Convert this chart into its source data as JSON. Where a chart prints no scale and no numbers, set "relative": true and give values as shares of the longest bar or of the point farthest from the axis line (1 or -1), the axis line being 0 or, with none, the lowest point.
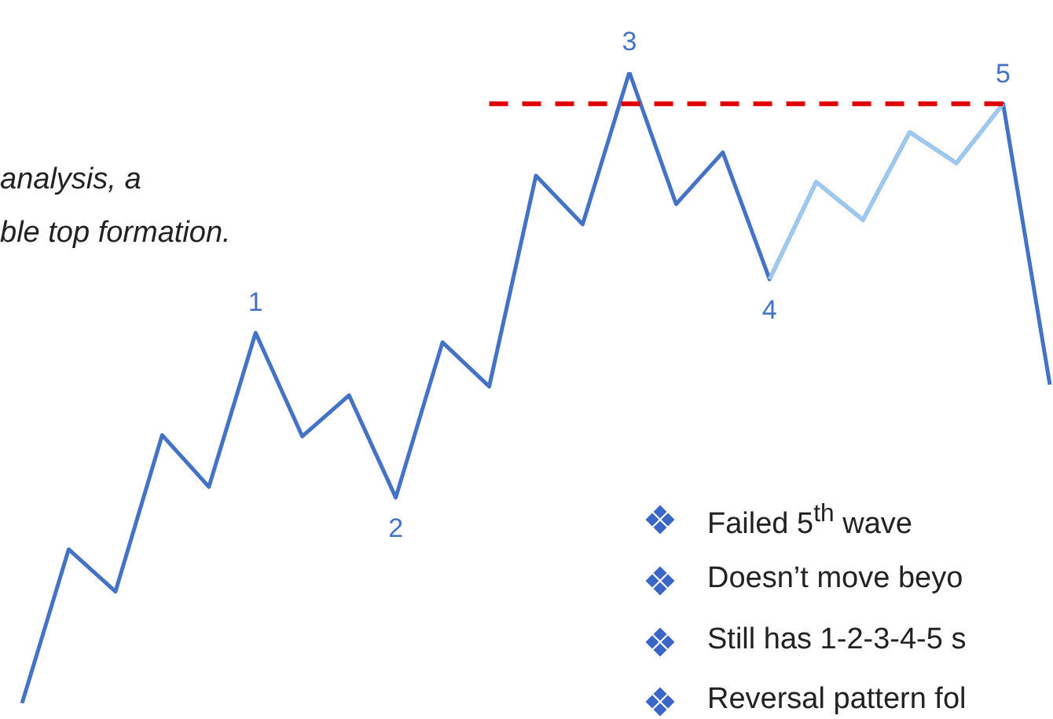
{
  "chart_data": {
    "type": "line",
    "relative": true,
    "marker": "none",
    "grid": false,
    "legend": false,
    "categories": [
      null,
      null,
      null,
      null,
      null,
      null,
      null,
      null,
      null,
      null,
      null,
      null,
      null,
      null,
      null,
      null,
      null,
      null,
      null,
      null,
      null,
      null,
      null
    ],
    "series": [
      {
        "color": "#4472c4",
        "line_style": "solid",
        "values": [
          0,
          0.244,
          0.177,
          0.425,
          0.343,
          0.587,
          0.423,
          0.488,
          0.326,
          0.572,
          0.502,
          0.836,
          0.759,
          1,
          0.791,
          0.873,
          0.672,
          0.826,
          0.766,
          0.905,
          0.856,
          0.95,
          0.505
        ]
      },
      {
        "color": "#9dc8f0",
        "line_style": "solid",
        "values": [
          null,
          null,
          null,
          null,
          null,
          null,
          null,
          null,
          null,
          null,
          null,
          null,
          null,
          null,
          null,
          null,
          0.672,
          0.826,
          0.766,
          0.905,
          0.856,
          0.95,
          null
        ]
      },
      {
        "color": "#e00000",
        "line_style": "dashed",
        "values": [
          null,
          null,
          null,
          null,
          null,
          null,
          null,
          null,
          null,
          null,
          0.95,
          0.95,
          0.95,
          0.95,
          0.95,
          0.95,
          0.95,
          0.95,
          0.95,
          0.95,
          0.95,
          0.95,
          null
        ]
      }
    ],
    "annotations": [
      {
        "text": "1",
        "y": 0.587
      },
      {
        "text": "2",
        "y": 0.326
      },
      {
        "text": "3",
        "y": 1
      },
      {
        "text": "4",
        "y": 0.672
      },
      {
        "text": "5",
        "y": 0.95
      },
      "analysis, a",
      "ble top formation.",
      "Failed 5$^{th}$ wave",
      "Doesn’t move beyo",
      "Still has 1-2-3-4-5 s",
      "Reversal pattern fol"
    ]
  }
}
